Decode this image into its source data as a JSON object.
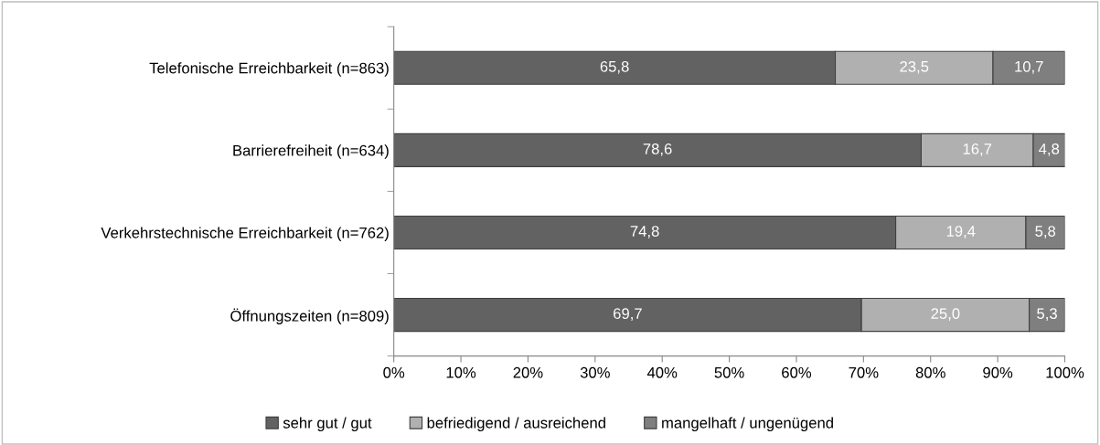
{
  "chart_data": {
    "type": "bar",
    "orientation": "horizontal",
    "stacked": true,
    "categories": [
      "Telefonische Erreichbarkeit (n=863)",
      "Barrierefreiheit (n=634)",
      "Verkehrstechnische Erreichbarkeit (n=762)",
      "Öffnungszeiten (n=809)"
    ],
    "series": [
      {
        "name": "sehr gut / gut",
        "color": "#626262",
        "values": [
          65.8,
          78.6,
          74.8,
          69.7
        ],
        "value_labels": [
          "65,8",
          "78,6",
          "74,8",
          "69,7"
        ]
      },
      {
        "name": "befriedigend / ausreichend",
        "color": "#b0b0b0",
        "values": [
          23.5,
          16.7,
          19.4,
          25.0
        ],
        "value_labels": [
          "23,5",
          "16,7",
          "19,4",
          "25,0"
        ]
      },
      {
        "name": "mangelhaft / ungenügend",
        "color": "#7f7f7f",
        "values": [
          10.7,
          4.8,
          5.8,
          5.3
        ],
        "value_labels": [
          "10,7",
          "4,8",
          "5,8",
          "5,3"
        ]
      }
    ],
    "xlim": [
      0,
      100
    ],
    "xticks": [
      {
        "value": 0,
        "label": "0%"
      },
      {
        "value": 10,
        "label": "10%"
      },
      {
        "value": 20,
        "label": "20%"
      },
      {
        "value": 30,
        "label": "30%"
      },
      {
        "value": 40,
        "label": "40%"
      },
      {
        "value": 50,
        "label": "50%"
      },
      {
        "value": 60,
        "label": "60%"
      },
      {
        "value": 70,
        "label": "70%"
      },
      {
        "value": 80,
        "label": "80%"
      },
      {
        "value": 90,
        "label": "90%"
      },
      {
        "value": 100,
        "label": "100%"
      }
    ],
    "grid": false,
    "legend": "bottom"
  }
}
